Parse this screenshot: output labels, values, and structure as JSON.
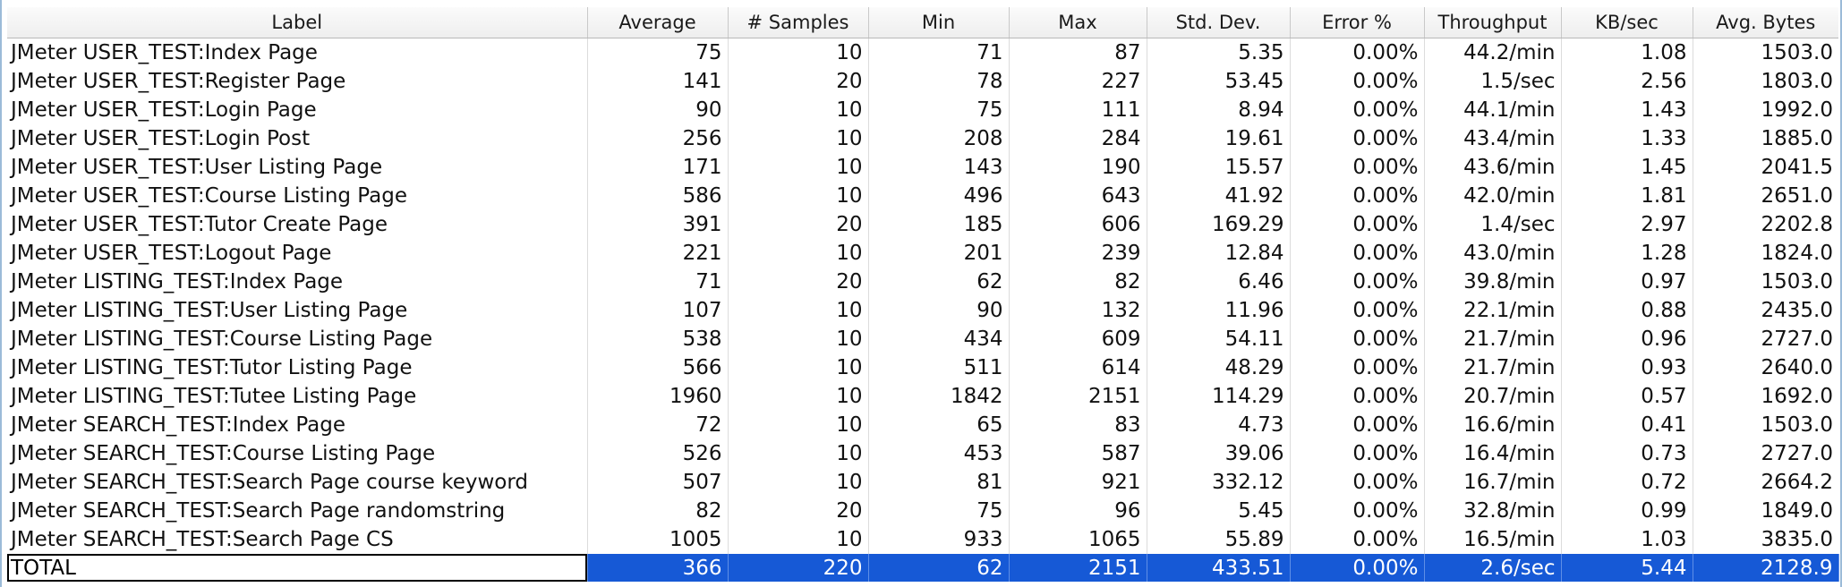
{
  "table": {
    "headers": [
      "Label",
      "Average",
      "# Samples",
      "Min",
      "Max",
      "Std. Dev.",
      "Error %",
      "Throughput",
      "KB/sec",
      "Avg. Bytes"
    ],
    "rows": [
      [
        "JMeter USER_TEST:Index Page",
        "75",
        "10",
        "71",
        "87",
        "5.35",
        "0.00%",
        "44.2/min",
        "1.08",
        "1503.0"
      ],
      [
        "JMeter USER_TEST:Register Page",
        "141",
        "20",
        "78",
        "227",
        "53.45",
        "0.00%",
        "1.5/sec",
        "2.56",
        "1803.0"
      ],
      [
        "JMeter USER_TEST:Login Page",
        "90",
        "10",
        "75",
        "111",
        "8.94",
        "0.00%",
        "44.1/min",
        "1.43",
        "1992.0"
      ],
      [
        "JMeter USER_TEST:Login Post",
        "256",
        "10",
        "208",
        "284",
        "19.61",
        "0.00%",
        "43.4/min",
        "1.33",
        "1885.0"
      ],
      [
        "JMeter USER_TEST:User Listing Page",
        "171",
        "10",
        "143",
        "190",
        "15.57",
        "0.00%",
        "43.6/min",
        "1.45",
        "2041.5"
      ],
      [
        "JMeter USER_TEST:Course Listing Page",
        "586",
        "10",
        "496",
        "643",
        "41.92",
        "0.00%",
        "42.0/min",
        "1.81",
        "2651.0"
      ],
      [
        "JMeter USER_TEST:Tutor Create Page",
        "391",
        "20",
        "185",
        "606",
        "169.29",
        "0.00%",
        "1.4/sec",
        "2.97",
        "2202.8"
      ],
      [
        "JMeter USER_TEST:Logout Page",
        "221",
        "10",
        "201",
        "239",
        "12.84",
        "0.00%",
        "43.0/min",
        "1.28",
        "1824.0"
      ],
      [
        "JMeter LISTING_TEST:Index Page",
        "71",
        "20",
        "62",
        "82",
        "6.46",
        "0.00%",
        "39.8/min",
        "0.97",
        "1503.0"
      ],
      [
        "JMeter LISTING_TEST:User Listing Page",
        "107",
        "10",
        "90",
        "132",
        "11.96",
        "0.00%",
        "22.1/min",
        "0.88",
        "2435.0"
      ],
      [
        "JMeter LISTING_TEST:Course Listing Page",
        "538",
        "10",
        "434",
        "609",
        "54.11",
        "0.00%",
        "21.7/min",
        "0.96",
        "2727.0"
      ],
      [
        "JMeter LISTING_TEST:Tutor Listing Page",
        "566",
        "10",
        "511",
        "614",
        "48.29",
        "0.00%",
        "21.7/min",
        "0.93",
        "2640.0"
      ],
      [
        "JMeter LISTING_TEST:Tutee Listing Page",
        "1960",
        "10",
        "1842",
        "2151",
        "114.29",
        "0.00%",
        "20.7/min",
        "0.57",
        "1692.0"
      ],
      [
        "JMeter SEARCH_TEST:Index Page",
        "72",
        "10",
        "65",
        "83",
        "4.73",
        "0.00%",
        "16.6/min",
        "0.41",
        "1503.0"
      ],
      [
        "JMeter SEARCH_TEST:Course Listing Page",
        "526",
        "10",
        "453",
        "587",
        "39.06",
        "0.00%",
        "16.4/min",
        "0.73",
        "2727.0"
      ],
      [
        "JMeter SEARCH_TEST:Search Page course keyword",
        "507",
        "10",
        "81",
        "921",
        "332.12",
        "0.00%",
        "16.7/min",
        "0.72",
        "2664.2"
      ],
      [
        "JMeter SEARCH_TEST:Search Page randomstring",
        "82",
        "20",
        "75",
        "96",
        "5.45",
        "0.00%",
        "32.8/min",
        "0.99",
        "1849.0"
      ],
      [
        "JMeter SEARCH_TEST:Search Page CS",
        "1005",
        "10",
        "933",
        "1065",
        "55.89",
        "0.00%",
        "16.5/min",
        "1.03",
        "3835.0"
      ]
    ],
    "total": [
      "TOTAL",
      "366",
      "220",
      "62",
      "2151",
      "433.51",
      "0.00%",
      "2.6/sec",
      "5.44",
      "2128.9"
    ],
    "selected_row_color": "#1659d6"
  }
}
